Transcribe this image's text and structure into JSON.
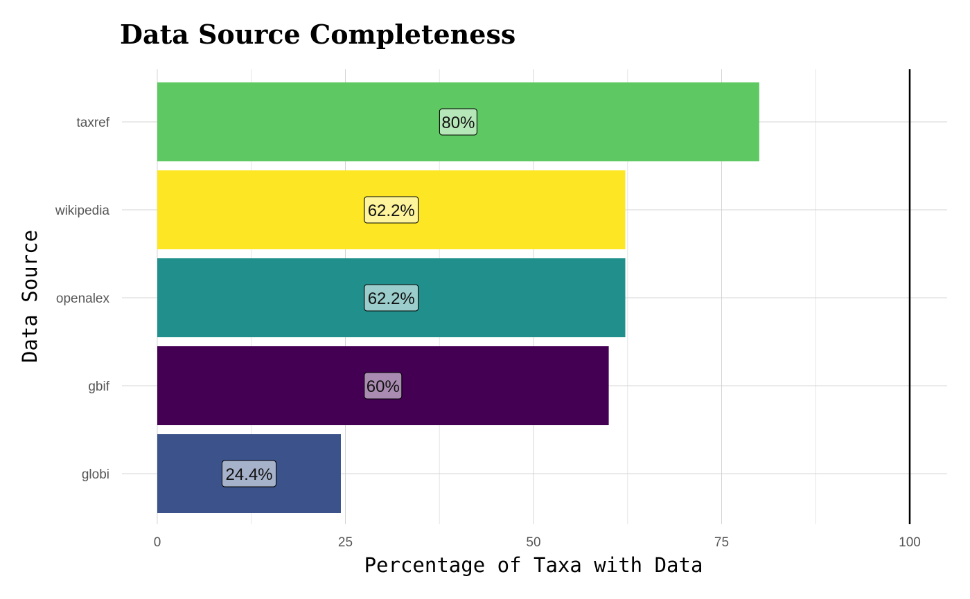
{
  "chart_data": {
    "type": "bar",
    "orientation": "horizontal",
    "title": "Data Source Completeness",
    "xlabel": "Percentage of Taxa with Data",
    "ylabel": "Data Source",
    "categories": [
      "taxref",
      "wikipedia",
      "openalex",
      "gbif",
      "globi"
    ],
    "values": [
      80,
      62.2,
      62.2,
      60,
      24.4
    ],
    "data_labels": [
      "80%",
      "62.2%",
      "62.2%",
      "60%",
      "24.4%"
    ],
    "colors": [
      "#5EC962",
      "#FDE725",
      "#21908C",
      "#440154",
      "#3B528B"
    ],
    "xlim": [
      -4.7,
      104.9
    ],
    "xticks": [
      "0",
      "25",
      "50",
      "75",
      "100"
    ],
    "reference_line": 100,
    "grid": true,
    "legend": "none"
  }
}
